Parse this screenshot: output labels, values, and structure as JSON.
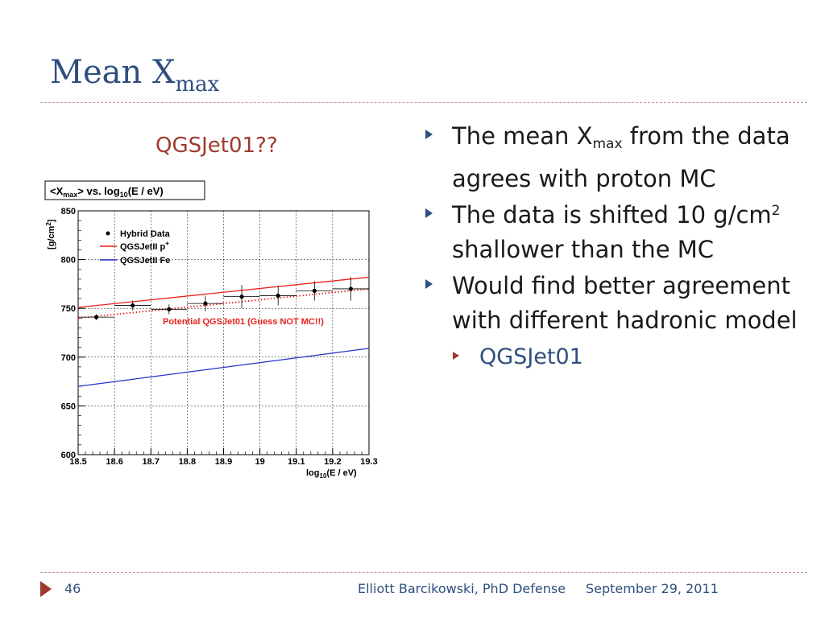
{
  "slide": {
    "title_main": "Mean X",
    "title_sub": "max",
    "subtitle": "QGSJet01??"
  },
  "bullets": {
    "b1_pre": "The mean X",
    "b1_sub": "max",
    "b1_post": " from the data agrees with proton MC",
    "b2_pre": "The data is shifted 10 g/cm",
    "b2_sup": "2",
    "b2_post": " shallower than the MC",
    "b3": "Would find better agreement with different hadronic model",
    "b3_sub": "QGSJet01"
  },
  "footer": {
    "page_number": "46",
    "author": "Elliott Barcikowski, PhD Defense",
    "date": "September 29, 2011"
  },
  "colors": {
    "title": "#2e4f7e",
    "accent": "#a03a2e",
    "proton_line": "#e8221c",
    "iron_line": "#2232c8"
  },
  "chart_data": {
    "type": "scatter",
    "title_parts": {
      "a": "<X",
      "a_sub": "max",
      "b": "> vs. log",
      "b_sub": "10",
      "c": "(E / eV)"
    },
    "xlabel_parts": {
      "a": "log",
      "a_sub": "10",
      "b": "(E / eV)"
    },
    "ylabel_parts": {
      "a": "[g/cm",
      "a_sup": "2",
      "b": "]"
    },
    "xlim": [
      18.5,
      19.3
    ],
    "ylim": [
      600,
      850
    ],
    "x_ticks": [
      "18.5",
      "18.6",
      "18.7",
      "18.8",
      "18.9",
      "19",
      "19.1",
      "19.2",
      "19.3"
    ],
    "y_ticks": [
      "600",
      "650",
      "700",
      "750",
      "800",
      "850"
    ],
    "grid": true,
    "legend_position": "top-left",
    "legend": {
      "hybrid": "Hybrid Data",
      "proton": "QGSJetII p",
      "proton_sup": "+",
      "iron": "QGSJetII Fe"
    },
    "annotation": "Potential QGSJet01 (Guess NOT MC!!)",
    "series": [
      {
        "name": "Hybrid Data",
        "points": [
          {
            "x": 18.55,
            "y": 741,
            "xerr": 0.05,
            "yerr": 3
          },
          {
            "x": 18.65,
            "y": 753,
            "xerr": 0.05,
            "yerr": 5
          },
          {
            "x": 18.75,
            "y": 749,
            "xerr": 0.05,
            "yerr": 5
          },
          {
            "x": 18.85,
            "y": 755,
            "xerr": 0.05,
            "yerr": 8
          },
          {
            "x": 18.95,
            "y": 762,
            "xerr": 0.05,
            "yerr": 12
          },
          {
            "x": 19.05,
            "y": 763,
            "xerr": 0.05,
            "yerr": 10
          },
          {
            "x": 19.15,
            "y": 768,
            "xerr": 0.05,
            "yerr": 10
          },
          {
            "x": 19.25,
            "y": 770,
            "xerr": 0.05,
            "yerr": 12
          }
        ]
      },
      {
        "name": "QGSJetII p+",
        "line": [
          [
            18.5,
            751
          ],
          [
            19.3,
            782
          ]
        ]
      },
      {
        "name": "QGSJetII Fe",
        "line": [
          [
            18.5,
            670
          ],
          [
            19.3,
            709
          ]
        ]
      },
      {
        "name": "Potential QGSJet01 (Guess NOT MC!!)",
        "dotted": true,
        "line": [
          [
            18.5,
            740
          ],
          [
            19.3,
            770
          ]
        ]
      }
    ]
  }
}
